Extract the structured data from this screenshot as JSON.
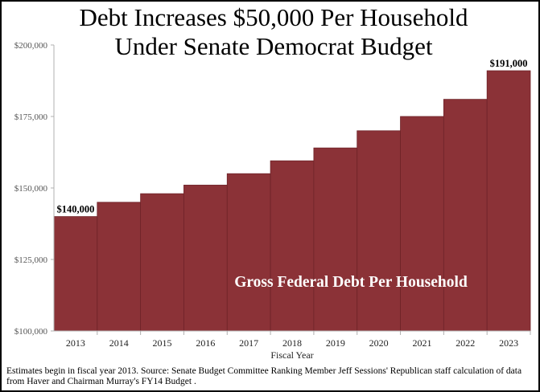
{
  "chart_data": {
    "type": "bar",
    "title": "Debt Increases $50,000 Per Household Under Senate Democrat Budget",
    "title_lines": [
      "Debt Increases $50,000 Per Household",
      "Under Senate Democrat Budget"
    ],
    "xlabel": "Fiscal Year",
    "ylabel": "",
    "categories": [
      "2013",
      "2014",
      "2015",
      "2016",
      "2017",
      "2018",
      "2019",
      "2020",
      "2021",
      "2022",
      "2023"
    ],
    "series": [
      {
        "name": "Gross Federal Debt Per Household",
        "values": [
          140000,
          145000,
          148000,
          151000,
          155000,
          159500,
          164000,
          170000,
          175000,
          181000,
          191000
        ]
      }
    ],
    "ylim": [
      100000,
      200000
    ],
    "yticks": [
      100000,
      125000,
      150000,
      175000,
      200000
    ],
    "ytick_labels": [
      "$100,000",
      "$125,000",
      "$150,000",
      "$175,000",
      "$200,000"
    ],
    "data_labels": [
      {
        "category": "2013",
        "text": "$140,000"
      },
      {
        "category": "2023",
        "text": "$191,000"
      }
    ],
    "annotation": "Gross Federal Debt Per Household",
    "bar_color": "#8b3237",
    "grid": false,
    "legend": "none"
  },
  "footnote": "Estimates begin in fiscal year 2013. Source: Senate Budget Committee Ranking Member Jeff Sessions' Republican staff calculation of data from Haver and Chairman Murray's FY14 Budget ."
}
